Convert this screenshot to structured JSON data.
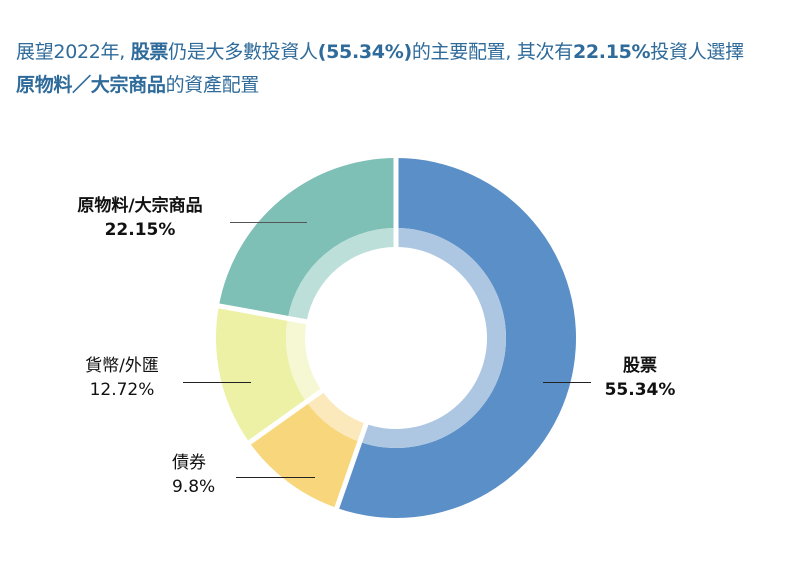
{
  "headline": {
    "line1_parts": [
      {
        "text": "展望2022年, ",
        "bold": false
      },
      {
        "text": "股票",
        "bold": true
      },
      {
        "text": "仍是大多數投資人",
        "bold": false
      },
      {
        "text": "(55.34%)",
        "bold": true
      },
      {
        "text": "的主要配置, 其次有",
        "bold": false
      },
      {
        "text": "22.15%",
        "bold": true
      },
      {
        "text": "投資人選擇",
        "bold": false
      }
    ],
    "line2_parts": [
      {
        "text": "原物料／大宗商品",
        "bold": true
      },
      {
        "text": "的資產配置",
        "bold": false
      }
    ]
  },
  "chart_data": {
    "type": "pie",
    "subtype": "donut",
    "title": "展望2022年, 股票仍是大多數投資人(55.34%)的主要配置, 其次有22.15%投資人選擇原物料／大宗商品的資產配置",
    "start_angle": "12 o'clock",
    "direction": "clockwise",
    "categories": [
      "股票",
      "債券",
      "貨幣/外匯",
      "原物料/大宗商品"
    ],
    "values": [
      55.34,
      9.8,
      12.72,
      22.15
    ],
    "unit": "%",
    "colors": [
      "#5b8fc7",
      "#f8d77c",
      "#ecf1a6",
      "#7ebfb6"
    ],
    "inner_colors": [
      "#adc7e3",
      "#fbe8bb",
      "#f5f8d3",
      "#bddfda"
    ],
    "labels": [
      {
        "name": "股票",
        "value": "55.34%",
        "bold": true
      },
      {
        "name": "債券",
        "value": "9.8%",
        "bold": false
      },
      {
        "name": "貨幣/外匯",
        "value": "12.72%",
        "bold": false
      },
      {
        "name": "原物料/大宗商品",
        "value": "22.15%",
        "bold": true
      }
    ]
  }
}
